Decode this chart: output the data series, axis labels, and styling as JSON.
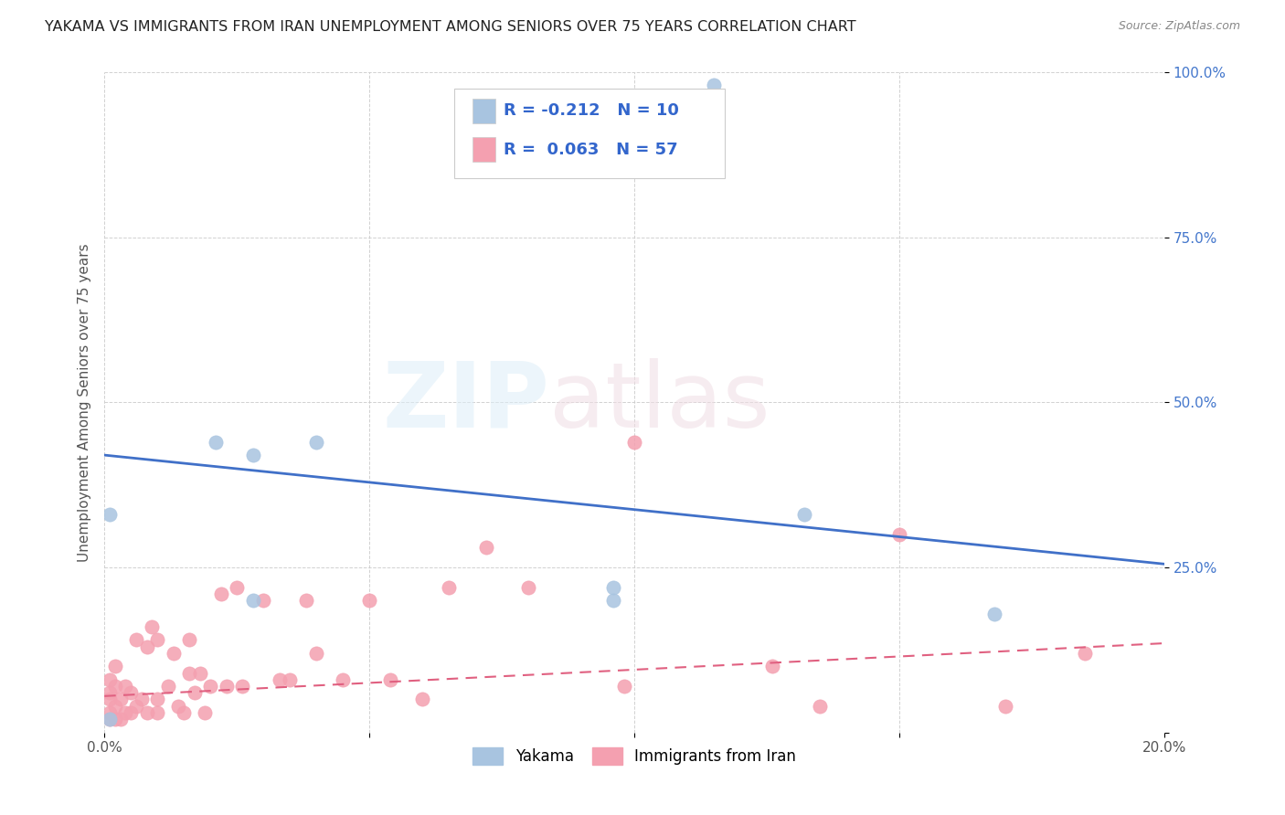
{
  "title": "YAKAMA VS IMMIGRANTS FROM IRAN UNEMPLOYMENT AMONG SENIORS OVER 75 YEARS CORRELATION CHART",
  "source": "Source: ZipAtlas.com",
  "ylabel": "Unemployment Among Seniors over 75 years",
  "xlim": [
    0.0,
    0.2
  ],
  "ylim": [
    0.0,
    1.0
  ],
  "yakama_color": "#a8c4e0",
  "iran_color": "#f4a0b0",
  "blue_line_color": "#4070c8",
  "pink_line_color": "#e06080",
  "yakama_x": [
    0.001,
    0.001,
    0.021,
    0.028,
    0.028,
    0.04,
    0.096,
    0.096,
    0.115,
    0.132,
    0.168
  ],
  "yakama_y": [
    0.33,
    0.02,
    0.44,
    0.42,
    0.2,
    0.44,
    0.2,
    0.22,
    0.98,
    0.33,
    0.18
  ],
  "iran_x": [
    0.001,
    0.001,
    0.001,
    0.001,
    0.001,
    0.002,
    0.002,
    0.002,
    0.002,
    0.003,
    0.003,
    0.004,
    0.004,
    0.005,
    0.005,
    0.006,
    0.006,
    0.007,
    0.008,
    0.008,
    0.009,
    0.01,
    0.01,
    0.01,
    0.012,
    0.013,
    0.014,
    0.015,
    0.016,
    0.016,
    0.017,
    0.018,
    0.019,
    0.02,
    0.022,
    0.023,
    0.025,
    0.026,
    0.03,
    0.033,
    0.035,
    0.038,
    0.04,
    0.045,
    0.05,
    0.054,
    0.06,
    0.065,
    0.072,
    0.08,
    0.098,
    0.1,
    0.126,
    0.135,
    0.15,
    0.17,
    0.185
  ],
  "iran_y": [
    0.02,
    0.03,
    0.05,
    0.06,
    0.08,
    0.02,
    0.04,
    0.07,
    0.1,
    0.02,
    0.05,
    0.03,
    0.07,
    0.03,
    0.06,
    0.04,
    0.14,
    0.05,
    0.03,
    0.13,
    0.16,
    0.03,
    0.05,
    0.14,
    0.07,
    0.12,
    0.04,
    0.03,
    0.14,
    0.09,
    0.06,
    0.09,
    0.03,
    0.07,
    0.21,
    0.07,
    0.22,
    0.07,
    0.2,
    0.08,
    0.08,
    0.2,
    0.12,
    0.08,
    0.2,
    0.08,
    0.05,
    0.22,
    0.28,
    0.22,
    0.07,
    0.44,
    0.1,
    0.04,
    0.3,
    0.04,
    0.12
  ],
  "blue_line_x0": 0.0,
  "blue_line_y0": 0.42,
  "blue_line_x1": 0.2,
  "blue_line_y1": 0.255,
  "pink_line_x0": 0.0,
  "pink_line_y0": 0.055,
  "pink_line_x1": 0.2,
  "pink_line_y1": 0.135
}
